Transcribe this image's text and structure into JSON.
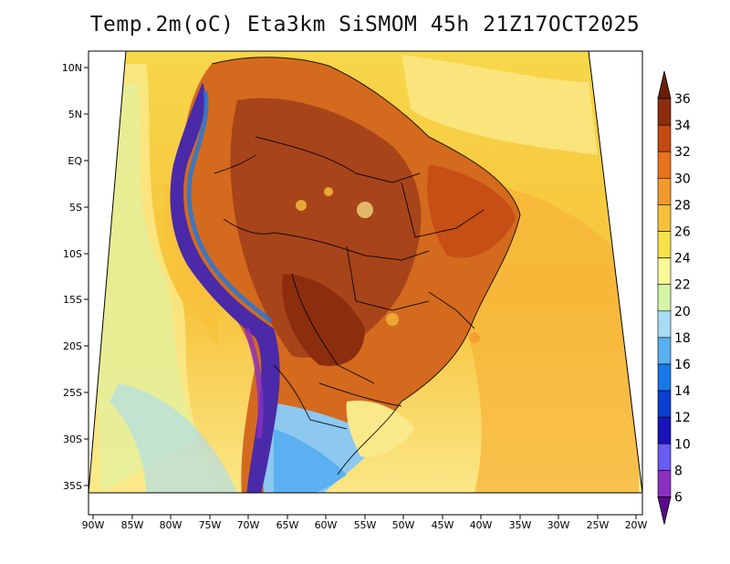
{
  "title": "Temp.2m(oC) Eta3km SiSMOM 45h 21Z17OCT2025",
  "lat_labels": [
    "10N",
    "5N",
    "EQ",
    "5S",
    "10S",
    "15S",
    "20S",
    "25S",
    "30S",
    "35S"
  ],
  "lon_labels": [
    "90W",
    "85W",
    "80W",
    "75W",
    "70W",
    "65W",
    "60W",
    "55W",
    "50W",
    "45W",
    "40W",
    "35W",
    "30W",
    "25W",
    "20W"
  ],
  "colorbar": {
    "levels": [
      "6",
      "8",
      "10",
      "12",
      "14",
      "16",
      "18",
      "20",
      "22",
      "24",
      "26",
      "28",
      "30",
      "32",
      "34",
      "36"
    ],
    "colors": [
      "#5a0a8c",
      "#8a2fbf",
      "#6a5cf0",
      "#1a14b8",
      "#0a3fd0",
      "#1a78e6",
      "#5ab0f0",
      "#a8dcf5",
      "#d6f5a8",
      "#fafa9a",
      "#f7e24a",
      "#f7c23a",
      "#f29a2e",
      "#e8711e",
      "#c44a14",
      "#8c2e0e",
      "#6b1e08"
    ]
  },
  "field_colors": {
    "ocean_warm": "#f7b43a",
    "ocean_mid": "#f7d74a",
    "ocean_cool": "#fae98a",
    "land_hot": "#a8441a",
    "land_warm": "#d46a1e",
    "andes_cold": "#4a2aa8",
    "south_cool": "#8cc8f0"
  }
}
